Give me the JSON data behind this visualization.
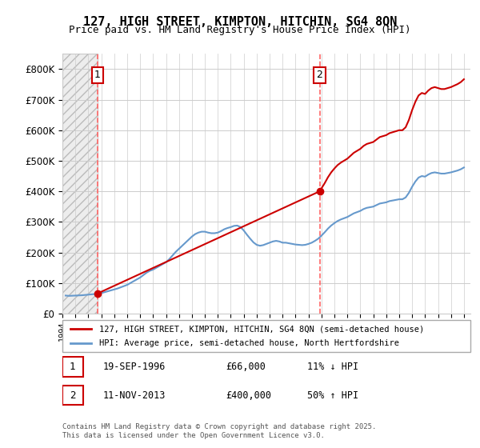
{
  "title": "127, HIGH STREET, KIMPTON, HITCHIN, SG4 8QN",
  "subtitle": "Price paid vs. HM Land Registry's House Price Index (HPI)",
  "ylabel": "",
  "ylim": [
    0,
    850000
  ],
  "yticks": [
    0,
    100000,
    200000,
    300000,
    400000,
    500000,
    600000,
    700000,
    800000
  ],
  "ytick_labels": [
    "£0",
    "£100K",
    "£200K",
    "£300K",
    "£400K",
    "£500K",
    "£600K",
    "£700K",
    "£800K"
  ],
  "xlim_start": 1994.0,
  "xlim_end": 2025.5,
  "sale1_date": 1996.72,
  "sale1_price": 66000,
  "sale1_label": "1",
  "sale2_date": 2013.86,
  "sale2_price": 400000,
  "sale2_label": "2",
  "legend_property": "127, HIGH STREET, KIMPTON, HITCHIN, SG4 8QN (semi-detached house)",
  "legend_hpi": "HPI: Average price, semi-detached house, North Hertfordshire",
  "annotation1": "1    19-SEP-1996         £66,000          11% ↓ HPI",
  "annotation2": "2    11-NOV-2013         £400,000        50% ↑ HPI",
  "footnote": "Contains HM Land Registry data © Crown copyright and database right 2025.\nThis data is licensed under the Open Government Licence v3.0.",
  "line_color_property": "#cc0000",
  "line_color_hpi": "#6699cc",
  "vline_color": "#ff6666",
  "background_hatch_color": "#e8e8e8",
  "hpi_data": {
    "years": [
      1994.25,
      1994.5,
      1994.75,
      1995.0,
      1995.25,
      1995.5,
      1995.75,
      1996.0,
      1996.25,
      1996.5,
      1996.75,
      1997.0,
      1997.25,
      1997.5,
      1997.75,
      1998.0,
      1998.25,
      1998.5,
      1998.75,
      1999.0,
      1999.25,
      1999.5,
      1999.75,
      2000.0,
      2000.25,
      2000.5,
      2000.75,
      2001.0,
      2001.25,
      2001.5,
      2001.75,
      2002.0,
      2002.25,
      2002.5,
      2002.75,
      2003.0,
      2003.25,
      2003.5,
      2003.75,
      2004.0,
      2004.25,
      2004.5,
      2004.75,
      2005.0,
      2005.25,
      2005.5,
      2005.75,
      2006.0,
      2006.25,
      2006.5,
      2006.75,
      2007.0,
      2007.25,
      2007.5,
      2007.75,
      2008.0,
      2008.25,
      2008.5,
      2008.75,
      2009.0,
      2009.25,
      2009.5,
      2009.75,
      2010.0,
      2010.25,
      2010.5,
      2010.75,
      2011.0,
      2011.25,
      2011.5,
      2011.75,
      2012.0,
      2012.25,
      2012.5,
      2012.75,
      2013.0,
      2013.25,
      2013.5,
      2013.75,
      2014.0,
      2014.25,
      2014.5,
      2014.75,
      2015.0,
      2015.25,
      2015.5,
      2015.75,
      2016.0,
      2016.25,
      2016.5,
      2016.75,
      2017.0,
      2017.25,
      2017.5,
      2017.75,
      2018.0,
      2018.25,
      2018.5,
      2018.75,
      2019.0,
      2019.25,
      2019.5,
      2019.75,
      2020.0,
      2020.25,
      2020.5,
      2020.75,
      2021.0,
      2021.25,
      2021.5,
      2021.75,
      2022.0,
      2022.25,
      2022.5,
      2022.75,
      2023.0,
      2023.25,
      2023.5,
      2023.75,
      2024.0,
      2024.25,
      2024.5,
      2024.75,
      2025.0
    ],
    "values": [
      59000,
      58000,
      58500,
      59000,
      59500,
      60000,
      61000,
      62000,
      63000,
      64000,
      65000,
      67000,
      70000,
      73000,
      76000,
      79000,
      82000,
      86000,
      90000,
      94000,
      100000,
      106000,
      112000,
      118000,
      126000,
      134000,
      140000,
      144000,
      150000,
      156000,
      162000,
      168000,
      178000,
      190000,
      202000,
      212000,
      222000,
      232000,
      242000,
      252000,
      260000,
      265000,
      268000,
      268000,
      265000,
      263000,
      263000,
      265000,
      270000,
      276000,
      280000,
      283000,
      287000,
      288000,
      283000,
      272000,
      258000,
      245000,
      233000,
      225000,
      222000,
      224000,
      228000,
      232000,
      236000,
      238000,
      236000,
      232000,
      232000,
      230000,
      228000,
      226000,
      225000,
      224000,
      225000,
      228000,
      232000,
      238000,
      245000,
      255000,
      266000,
      278000,
      288000,
      296000,
      303000,
      308000,
      312000,
      316000,
      322000,
      328000,
      332000,
      336000,
      342000,
      346000,
      348000,
      350000,
      355000,
      360000,
      362000,
      364000,
      368000,
      370000,
      372000,
      374000,
      374000,
      380000,
      395000,
      415000,
      432000,
      445000,
      450000,
      448000,
      455000,
      460000,
      462000,
      460000,
      458000,
      458000,
      460000,
      462000,
      465000,
      468000,
      472000,
      478000
    ]
  },
  "property_data": {
    "years": [
      1996.72,
      2013.86
    ],
    "values": [
      66000,
      400000
    ]
  }
}
